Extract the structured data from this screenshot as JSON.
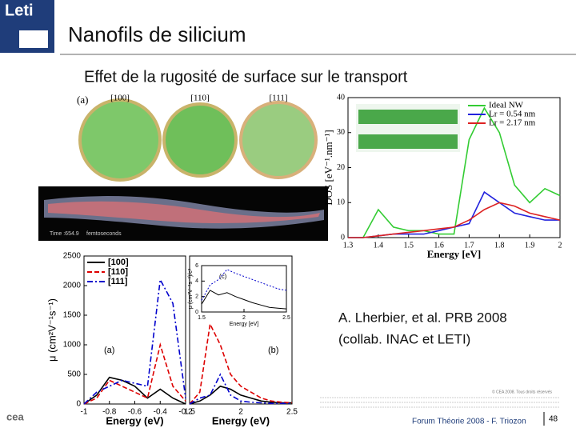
{
  "header": {
    "logo": "Leti",
    "title": "Nanofils de silicium",
    "subtitle": "Effet de la rugosité de surface sur le transport"
  },
  "crystal": {
    "panel": "(a)",
    "labels": [
      "[100]",
      "[110]",
      "[111]"
    ]
  },
  "simulation": {
    "time": "Time :654.9",
    "unit": "femtoseconds"
  },
  "chart_data": [
    {
      "type": "line",
      "xlabel": "Energy [eV]",
      "ylabel": "DOS [eV⁻¹.nm⁻¹]",
      "legend": "upper right",
      "x": [
        1.3,
        1.35,
        1.4,
        1.45,
        1.5,
        1.55,
        1.6,
        1.65,
        1.7,
        1.75,
        1.8,
        1.85,
        1.9,
        1.95,
        2.0
      ],
      "series": [
        {
          "name": "Ideal NW",
          "color": "#33cc33",
          "style": "solid",
          "values": [
            0,
            0,
            8,
            3,
            2,
            2,
            1,
            1,
            28,
            37,
            30,
            15,
            10,
            14,
            12
          ]
        },
        {
          "name": "Lr = 0.54 nm",
          "color": "#2222dd",
          "style": "solid",
          "values": [
            0,
            0,
            0.5,
            1,
            1,
            1,
            2,
            3,
            4,
            13,
            10,
            7,
            6,
            5,
            5
          ]
        },
        {
          "name": "Lr = 2.17 nm",
          "color": "#dd2222",
          "style": "solid",
          "values": [
            0,
            0,
            0.5,
            1,
            1.5,
            2,
            2.5,
            3,
            5,
            8,
            10,
            9,
            7,
            6,
            5
          ]
        }
      ],
      "xlim": [
        1.3,
        2
      ],
      "ylim": [
        0,
        40
      ],
      "xticks": [
        1.3,
        1.4,
        1.5,
        1.6,
        1.7,
        1.8,
        1.9,
        2
      ],
      "yticks": [
        0,
        10,
        20,
        30,
        40
      ]
    },
    {
      "type": "line",
      "xlabel": "Energy (eV)",
      "ylabel": "μ (cm²V⁻¹s⁻¹)",
      "legend": "upper left",
      "annotation": "(a)",
      "x": [
        -1,
        -0.9,
        -0.8,
        -0.7,
        -0.6,
        -0.5,
        -0.4,
        -0.3,
        -0.2
      ],
      "series": [
        {
          "name": "[100]",
          "color": "#000000",
          "style": "solid",
          "values": [
            0,
            150,
            450,
            400,
            300,
            100,
            250,
            100,
            0
          ]
        },
        {
          "name": "[110]",
          "color": "#dd0000",
          "style": "dashed",
          "values": [
            0,
            100,
            400,
            300,
            200,
            100,
            1000,
            300,
            50
          ]
        },
        {
          "name": "[111]",
          "color": "#0000cc",
          "style": "dashdot",
          "values": [
            0,
            200,
            300,
            400,
            350,
            300,
            2100,
            1700,
            100
          ]
        }
      ],
      "xlim": [
        -1,
        -0.2
      ],
      "ylim": [
        0,
        2500
      ],
      "xticks": [
        -1,
        -0.8,
        -0.6,
        -0.4,
        -0.2
      ],
      "yticks": [
        0,
        500,
        1000,
        1500,
        2000,
        2500
      ]
    },
    {
      "type": "line",
      "xlabel": "Energy (eV)",
      "annotation": "(b)",
      "x": [
        1.5,
        1.6,
        1.7,
        1.8,
        1.9,
        2.0,
        2.1,
        2.2,
        2.3,
        2.4,
        2.5
      ],
      "series": [
        {
          "color": "#000000",
          "style": "solid",
          "values": [
            0,
            50,
            150,
            300,
            250,
            150,
            100,
            50,
            30,
            20,
            20
          ]
        },
        {
          "color": "#dd0000",
          "style": "dashed",
          "values": [
            0,
            200,
            1350,
            1000,
            500,
            300,
            200,
            100,
            50,
            30,
            20
          ]
        },
        {
          "color": "#0000cc",
          "style": "dashdot",
          "values": [
            0,
            100,
            150,
            500,
            150,
            50,
            30,
            20,
            10,
            10,
            10
          ]
        }
      ],
      "xlim": [
        1.5,
        2.5
      ],
      "ylim": [
        0,
        2500
      ],
      "xticks": [
        1.5,
        2,
        2.5
      ]
    },
    {
      "type": "line",
      "xlabel": "Energy [eV]",
      "ylabel": "μ (cm²V⁻¹s⁻¹)/c²",
      "annotation": "(c)",
      "x": [
        1.5,
        1.6,
        1.7,
        1.8,
        1.9,
        2.0,
        2.1,
        2.2,
        2.3,
        2.4,
        2.5
      ],
      "series": [
        {
          "color": "#000000",
          "style": "solid",
          "values": [
            1,
            2.8,
            2.2,
            2.5,
            2.0,
            1.6,
            1.2,
            0.9,
            0.6,
            0.5,
            0.4
          ]
        },
        {
          "color": "#0000cc",
          "style": "dotted",
          "values": [
            1.5,
            3.5,
            4.2,
            5.5,
            5,
            4.6,
            4.2,
            3.8,
            3.4,
            3.0,
            2.8
          ]
        }
      ],
      "xlim": [
        1.5,
        2.5
      ],
      "ylim": [
        0,
        6
      ],
      "xticks": [
        1.5,
        2,
        2.5
      ],
      "yticks": [
        0,
        2,
        4,
        6
      ]
    }
  ],
  "citation": [
    "A. Lherbier, et al. PRB 2008",
    "(collab. INAC et LETI)"
  ],
  "footer": {
    "copyright": "© CEA 2008. Tous droits réservés",
    "event": "Forum Théorie 2008 - F. Triozon",
    "page": "48",
    "logo": "cea"
  }
}
